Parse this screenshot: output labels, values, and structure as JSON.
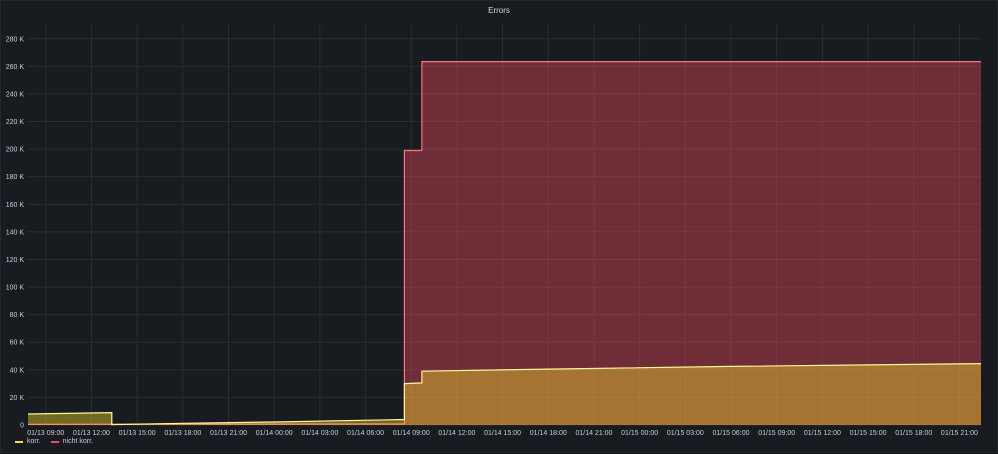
{
  "chart_data": {
    "type": "area",
    "title": "Errors",
    "xlabel": "",
    "ylabel": "",
    "ylim": [
      0,
      290000
    ],
    "xlim": [
      "01/13 07:50",
      "01/15 22:25"
    ],
    "grid": true,
    "legend_position": "bottom-left",
    "y_ticks": [
      "0",
      "20 K",
      "40 K",
      "60 K",
      "80 K",
      "100 K",
      "120 K",
      "140 K",
      "160 K",
      "180 K",
      "200 K",
      "220 K",
      "240 K",
      "260 K",
      "280 K"
    ],
    "x_ticks": [
      "01/13 09:00",
      "01/13 12:00",
      "01/13 15:00",
      "01/13 18:00",
      "01/13 21:00",
      "01/14 00:00",
      "01/14 03:00",
      "01/14 06:00",
      "01/14 09:00",
      "01/14 12:00",
      "01/14 15:00",
      "01/14 18:00",
      "01/14 21:00",
      "01/15 00:00",
      "01/15 03:00",
      "01/15 06:00",
      "01/15 09:00",
      "01/15 12:00",
      "01/15 15:00",
      "01/15 18:00",
      "01/15 21:00"
    ],
    "series": [
      {
        "name": "nicht korr.",
        "color": "#f2495c",
        "points": [
          [
            "01/13 07:50",
            500
          ],
          [
            "01/14 08:33",
            800
          ],
          [
            "01/14 08:33",
            199000
          ],
          [
            "01/14 09:42",
            199000
          ],
          [
            "01/14 09:42",
            263500
          ],
          [
            "01/15 22:25",
            263500
          ]
        ]
      },
      {
        "name": "korr.",
        "color": "#fade2a",
        "points": [
          [
            "01/13 07:50",
            8000
          ],
          [
            "01/13 13:20",
            9000
          ],
          [
            "01/13 13:20",
            300
          ],
          [
            "01/13 18:00",
            1200
          ],
          [
            "01/14 00:00",
            2200
          ],
          [
            "01/14 08:33",
            4000
          ],
          [
            "01/14 08:33",
            30000
          ],
          [
            "01/14 09:42",
            30500
          ],
          [
            "01/14 09:42",
            39000
          ],
          [
            "01/14 18:00",
            40500
          ],
          [
            "01/15 06:00",
            42500
          ],
          [
            "01/15 22:25",
            44500
          ]
        ]
      }
    ]
  }
}
